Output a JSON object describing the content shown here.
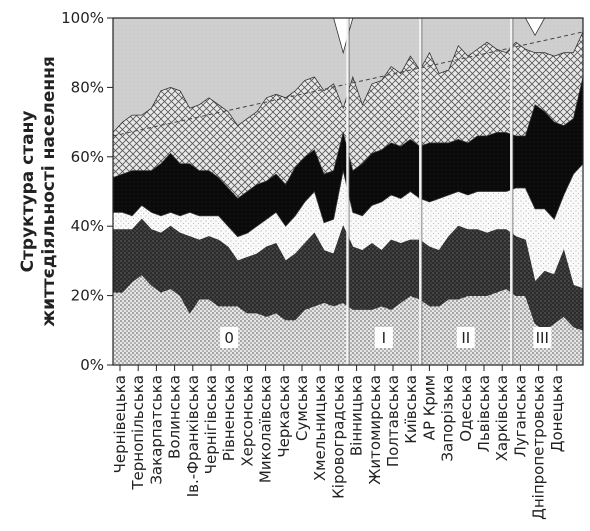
{
  "chart_data": {
    "type": "area",
    "stacked": true,
    "ylabel": [
      "Структура стану",
      "життєдіяльності населення"
    ],
    "ylim": [
      0,
      100
    ],
    "yticks": [
      "0%",
      "20%",
      "40%",
      "60%",
      "80%",
      "100%"
    ],
    "categories": [
      "Чернівецька",
      "Тернопільська",
      "Закарпатська",
      "Волинська",
      "Ів.-Франківська",
      "Чернігівська",
      "Рівненська",
      "Херсонська",
      "Миколаївська",
      "Черкаська",
      "Сумська",
      "Хмельницька",
      "Кіровоградська",
      "Вінницька",
      "Житомирська",
      "Полтавська",
      "Київська",
      "АР Крим",
      "Запорізька",
      "Одеська",
      "Львівська",
      "Харківська",
      "Луганська",
      "Дніпропетровська",
      "Донецька"
    ],
    "x": [
      0,
      1,
      2,
      3,
      4,
      5,
      6,
      7,
      8,
      9,
      10,
      11,
      12,
      13,
      14,
      15,
      16,
      17,
      18,
      19,
      20,
      21,
      22,
      23,
      24,
      25,
      26,
      27,
      28,
      29,
      30,
      31,
      32,
      33,
      34,
      35,
      36,
      37,
      38,
      39,
      40,
      41,
      42,
      43,
      44,
      45,
      46,
      47,
      48,
      49
    ],
    "series": [
      {
        "values": [
          21,
          21,
          24,
          26,
          23,
          21,
          22,
          20,
          15,
          19,
          19,
          17,
          17,
          17,
          15,
          15,
          14,
          15,
          13,
          13,
          16,
          17,
          18,
          17,
          18,
          16,
          16,
          16,
          17,
          16,
          18,
          20,
          19,
          17,
          17,
          19,
          19,
          20,
          20,
          20,
          21,
          22,
          20,
          20,
          12,
          10,
          12,
          14,
          11,
          10
        ],
        "color": "#dcdcdc"
      },
      {
        "values": [
          18,
          18,
          15,
          16,
          16,
          17,
          18,
          18,
          22,
          17,
          18,
          19,
          17,
          13,
          16,
          17,
          20,
          20,
          17,
          19,
          19,
          21,
          15,
          15,
          22,
          18,
          17,
          19,
          16,
          20,
          17,
          16,
          17,
          17,
          16,
          18,
          21,
          19,
          19,
          18,
          18,
          17,
          17,
          16,
          12,
          17,
          14,
          19,
          12,
          12
        ],
        "color": "#303030"
      },
      {
        "values": [
          5,
          5,
          4,
          4,
          5,
          5,
          4,
          5,
          7,
          7,
          6,
          7,
          6,
          7,
          7,
          8,
          8,
          9,
          10,
          11,
          12,
          12,
          8,
          10,
          16,
          10,
          10,
          11,
          14,
          13,
          13,
          14,
          12,
          13,
          15,
          12,
          10,
          10,
          11,
          12,
          11,
          11,
          14,
          15,
          21,
          18,
          16,
          16,
          32,
          36
        ],
        "color": "#f5f5f5"
      },
      {
        "values": [
          10,
          11,
          13,
          10,
          12,
          15,
          17,
          15,
          14,
          13,
          13,
          11,
          11,
          11,
          12,
          12,
          11,
          11,
          12,
          14,
          13,
          12,
          14,
          14,
          11,
          12,
          15,
          15,
          15,
          15,
          15,
          15,
          15,
          17,
          16,
          15,
          15,
          15,
          16,
          16,
          17,
          17,
          15,
          15,
          30,
          28,
          28,
          20,
          16,
          25
        ],
        "color": "#0e0e0e"
      },
      {
        "values": [
          13,
          15,
          16,
          16,
          18,
          21,
          19,
          21,
          16,
          19,
          21,
          21,
          22,
          21,
          21,
          21,
          24,
          23,
          25,
          22,
          22,
          21,
          24,
          25,
          7,
          27,
          17,
          20,
          20,
          22,
          21,
          24,
          22,
          26,
          20,
          21,
          27,
          25,
          25,
          27,
          24,
          23,
          27,
          25,
          15,
          17,
          19,
          21,
          19,
          13
        ],
        "color": "#e0e0e0"
      },
      {
        "values": [
          33,
          30,
          28,
          28,
          26,
          21,
          20,
          21,
          26,
          25,
          23,
          25,
          27,
          31,
          29,
          27,
          23,
          22,
          23,
          21,
          18,
          17,
          21,
          19,
          16,
          17,
          25,
          19,
          18,
          14,
          16,
          11,
          15,
          10,
          16,
          15,
          8,
          11,
          9,
          7,
          9,
          10,
          7,
          9,
          5,
          10,
          11,
          10,
          10,
          4
        ],
        "color": "#c9c9c9"
      }
    ],
    "zones": [
      "0",
      "I",
      "II",
      "III"
    ],
    "trend_line": {
      "from_y": 66,
      "to_y": 96
    }
  }
}
